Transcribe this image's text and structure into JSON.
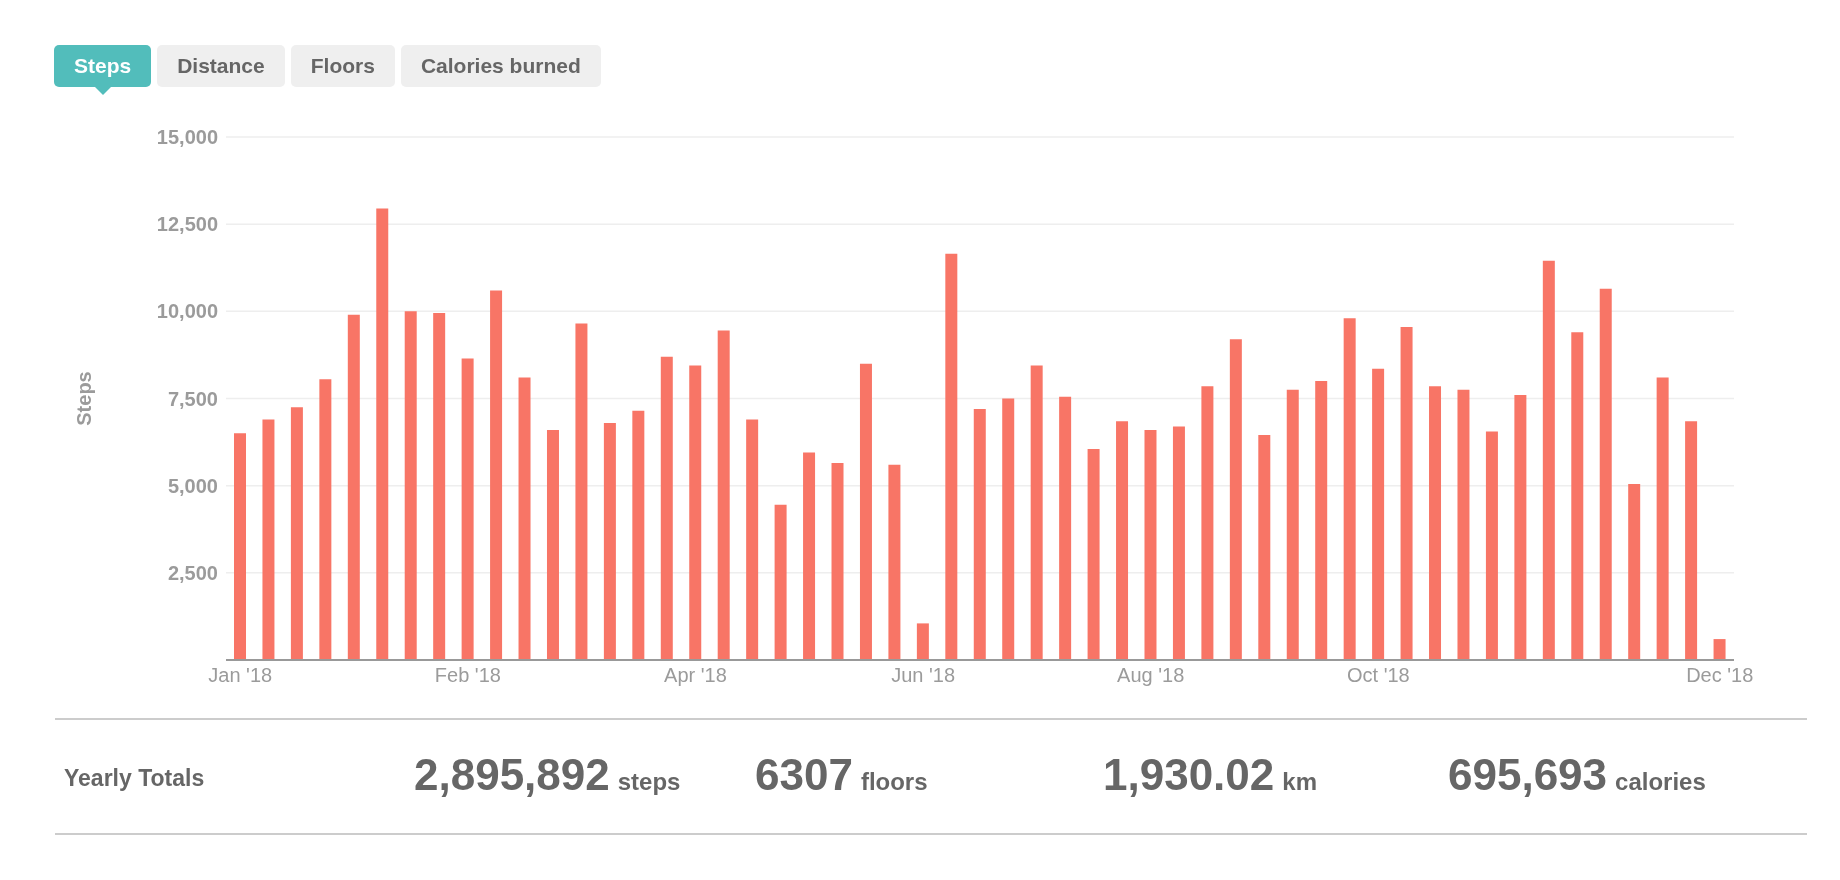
{
  "chart_data": {
    "type": "bar",
    "ylabel": "Steps",
    "categories": [
      "Jan '18",
      null,
      null,
      null,
      null,
      null,
      null,
      null,
      "Feb '18",
      null,
      null,
      null,
      null,
      null,
      null,
      null,
      "Apr '18",
      null,
      null,
      null,
      null,
      null,
      null,
      null,
      "Jun '18",
      null,
      null,
      null,
      null,
      null,
      null,
      null,
      "Aug '18",
      null,
      null,
      null,
      null,
      null,
      null,
      null,
      "Oct '18",
      null,
      null,
      null,
      null,
      null,
      null,
      null,
      null,
      null,
      null,
      null,
      "Dec '18"
    ],
    "values": [
      6500,
      6900,
      7250,
      8050,
      9900,
      12950,
      10000,
      9950,
      8650,
      10600,
      8100,
      6600,
      9650,
      6800,
      7150,
      8700,
      8450,
      9450,
      6900,
      4450,
      5950,
      5650,
      8500,
      5600,
      1050,
      11650,
      7200,
      7500,
      8450,
      7550,
      6050,
      6850,
      6600,
      6700,
      7850,
      9200,
      6450,
      7750,
      8000,
      9800,
      8350,
      9550,
      7850,
      7750,
      6550,
      7600,
      11450,
      9400,
      10650,
      5050,
      8100,
      6850,
      600
    ],
    "color": "#f87566",
    "ylim": [
      0,
      15000
    ],
    "yticks": [
      {
        "value": 0,
        "label": null
      },
      {
        "value": 2500,
        "label": "2,500"
      },
      {
        "value": 5000,
        "label": "5,000"
      },
      {
        "value": 7500,
        "label": "7,500"
      },
      {
        "value": 10000,
        "label": "10,000"
      },
      {
        "value": 12500,
        "label": "12,500"
      },
      {
        "value": 15000,
        "label": "15,000"
      }
    ],
    "grid": "y",
    "annotations": [
      "Steps",
      "Distance",
      "Floors",
      "Calories burned",
      "Yearly Totals",
      "2,895,892",
      "steps",
      "6307",
      "floors",
      "1,930.02",
      "km",
      "695,693",
      "calories"
    ]
  }
}
